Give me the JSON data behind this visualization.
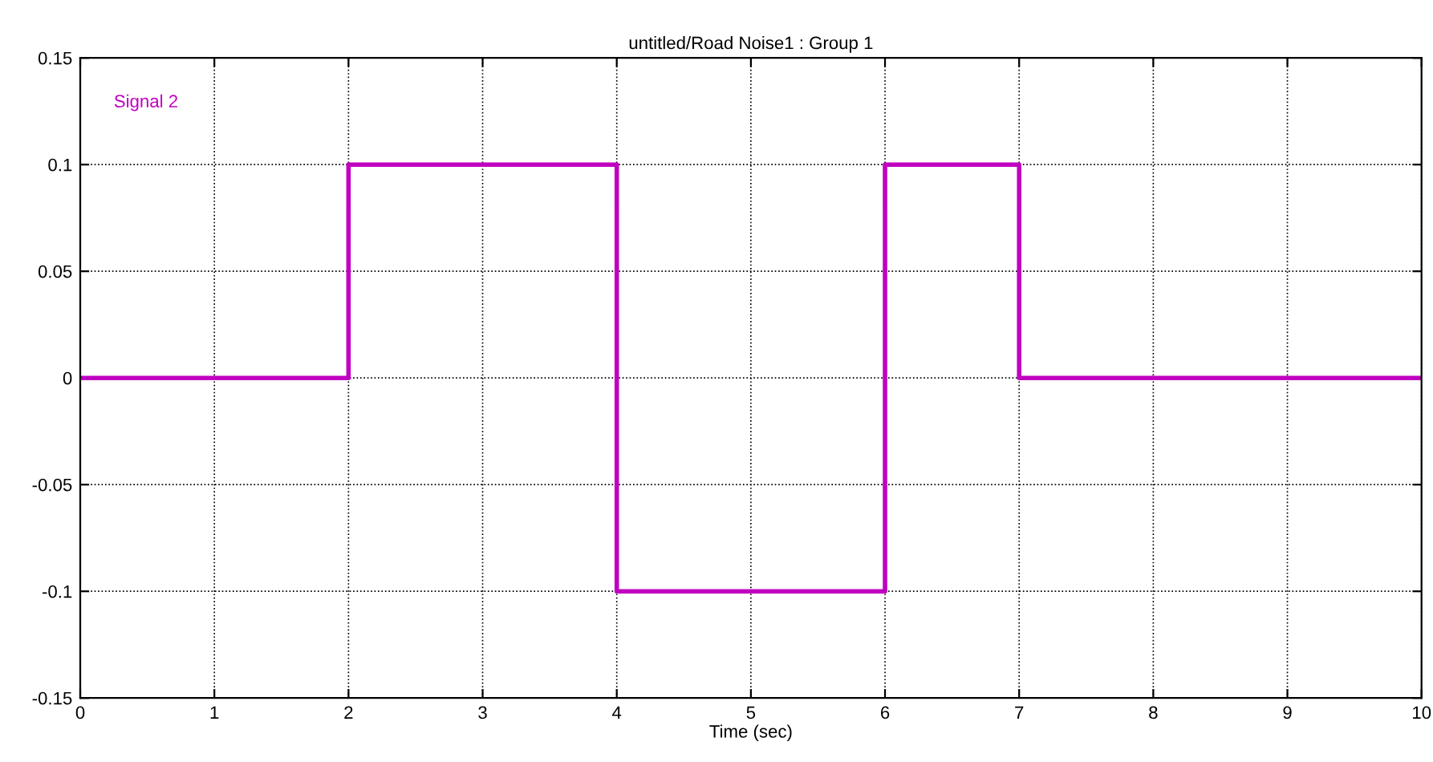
{
  "chart_data": {
    "type": "step",
    "title": "untitled/Road Noise1 : Group 1",
    "xlabel": "Time (sec)",
    "series": [
      {
        "name": "Signal 2",
        "color": "#c000c0",
        "x": [
          0,
          2,
          4,
          6,
          7,
          10
        ],
        "values": [
          0,
          0.1,
          -0.1,
          0.1,
          0,
          0
        ]
      }
    ],
    "xlim": [
      0,
      10
    ],
    "xticks": [
      0,
      1,
      2,
      3,
      4,
      5,
      6,
      7,
      8,
      9,
      10
    ],
    "ylim": [
      -0.15,
      0.15
    ],
    "yticks": [
      -0.15,
      -0.1,
      -0.05,
      0,
      0.05,
      0.1,
      0.15
    ],
    "grid": true,
    "line_style": "solid",
    "marker": "none"
  }
}
